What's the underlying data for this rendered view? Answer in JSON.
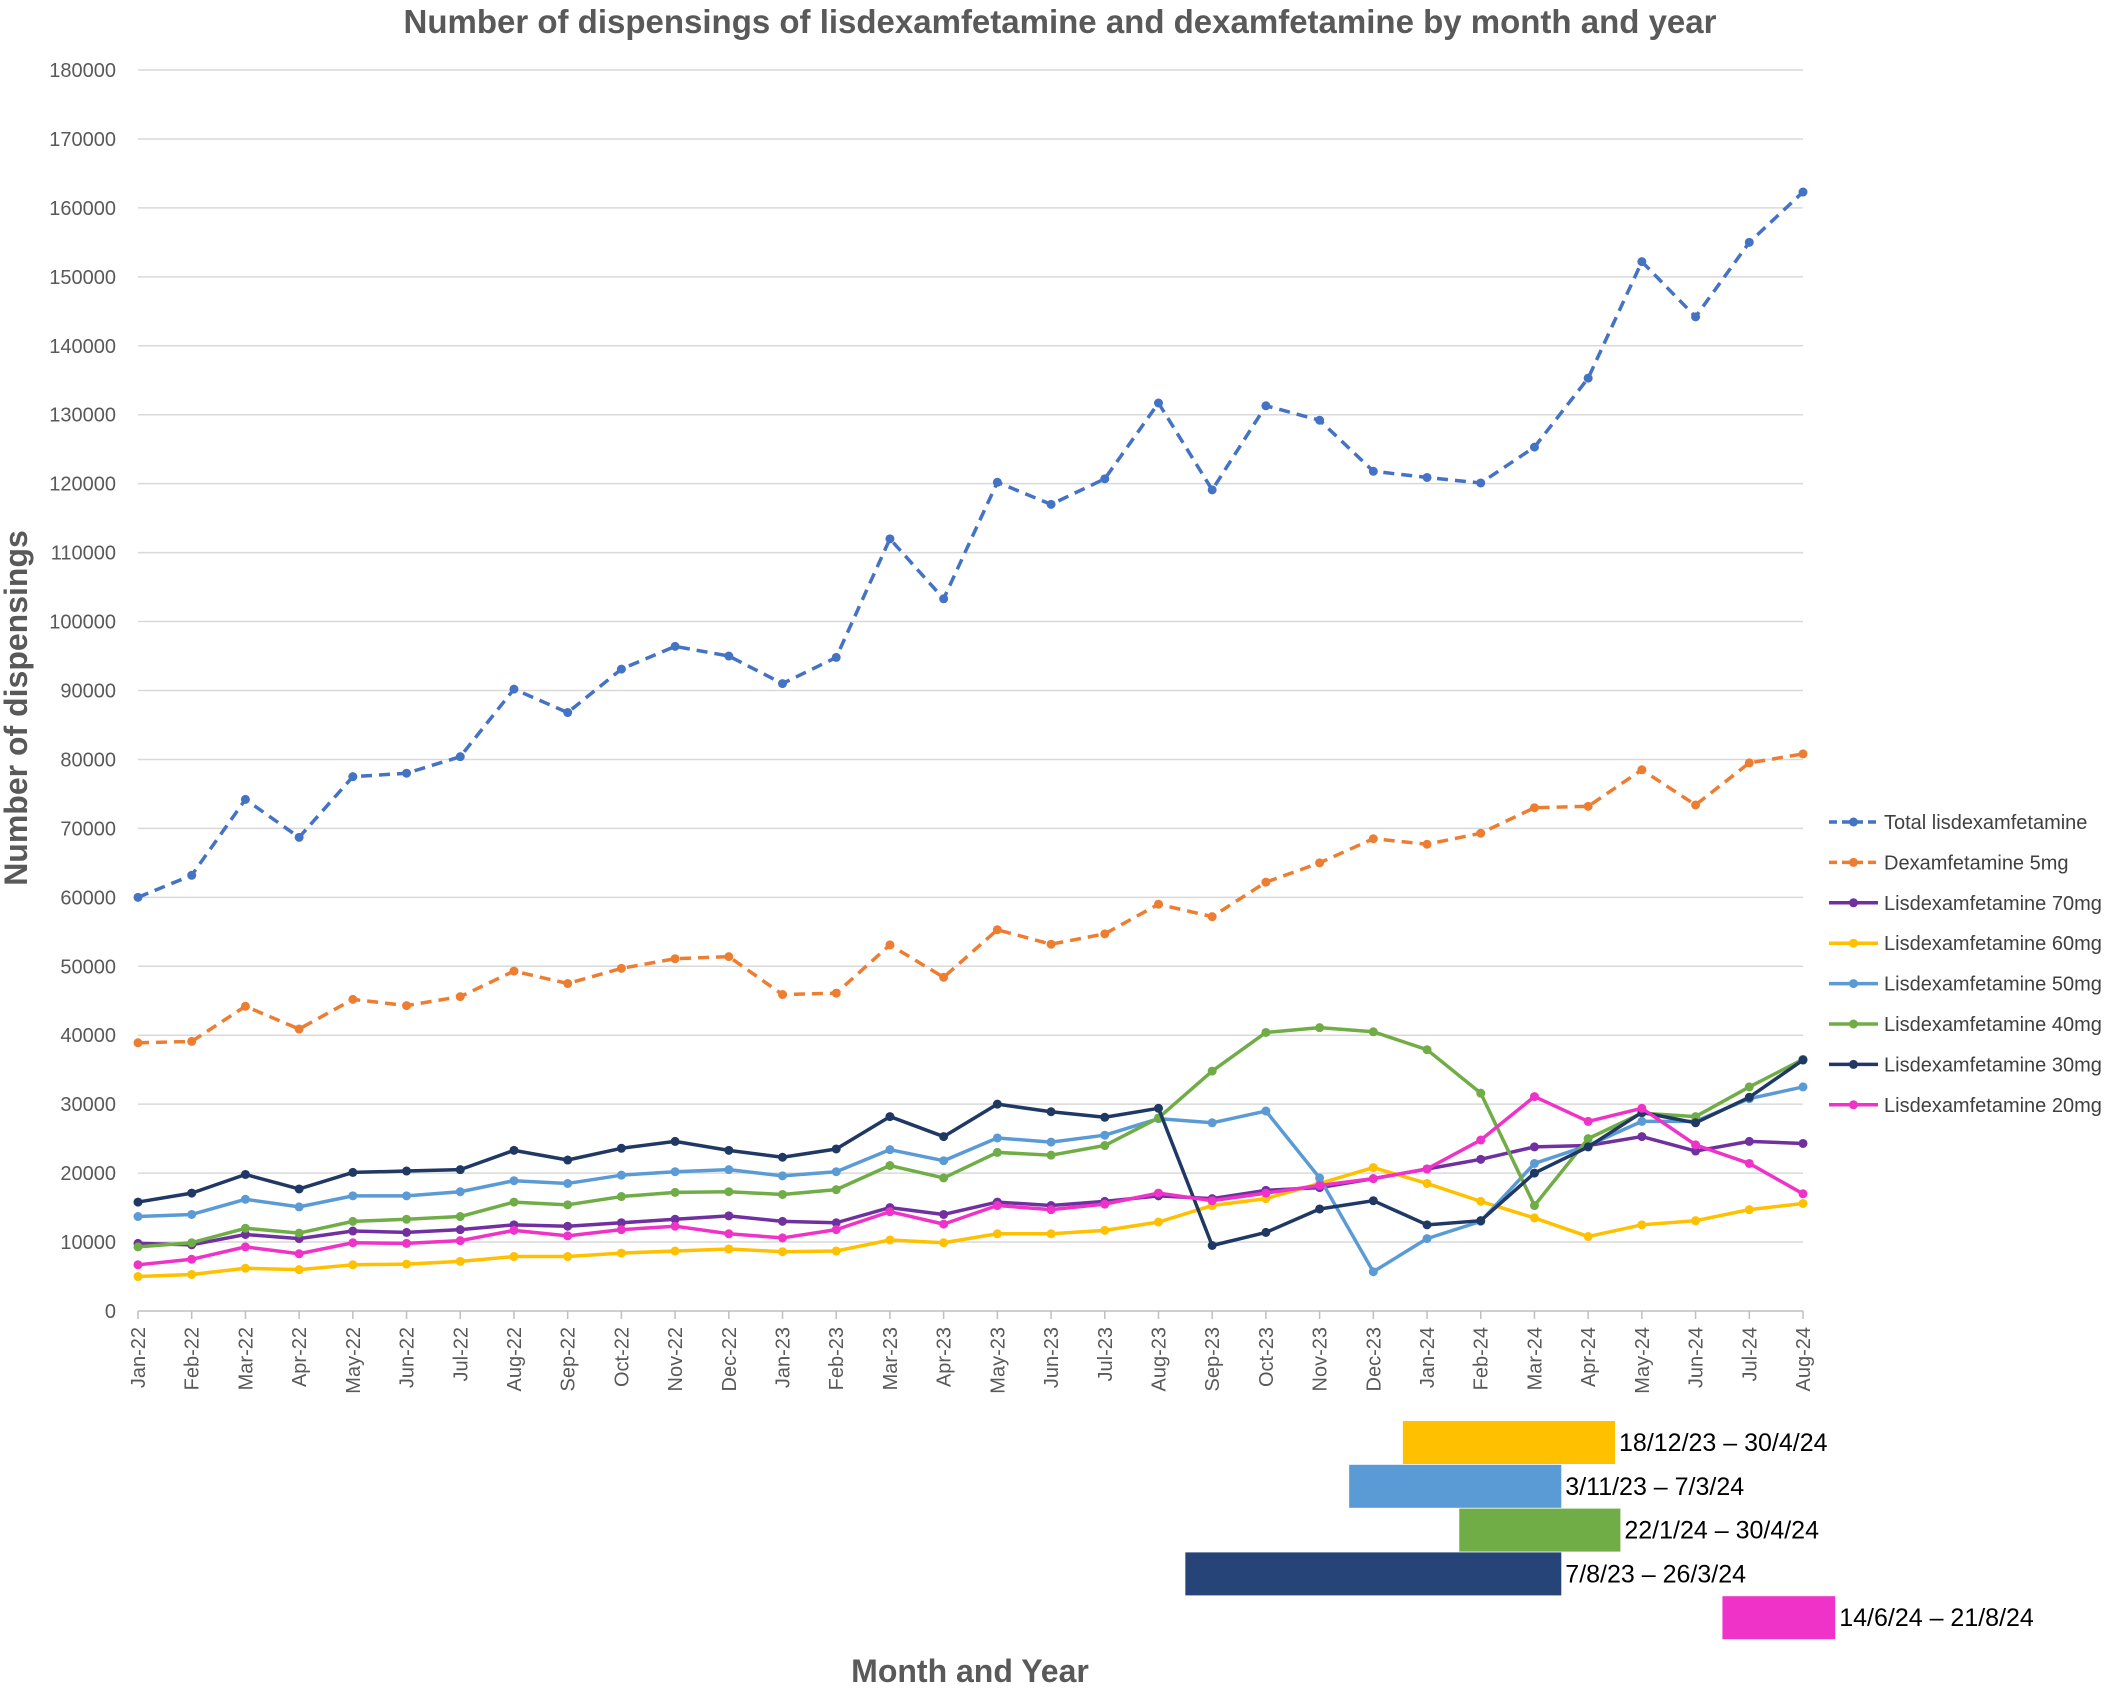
{
  "chart_data": {
    "type": "line",
    "title": "Number of dispensings of lisdexamfetamine and dexamfetamine by month and year",
    "xlabel": "Month and Year",
    "ylabel": "Number of dispensings",
    "ylim": [
      0,
      180000
    ],
    "y_ticks": [
      0,
      10000,
      20000,
      30000,
      40000,
      50000,
      60000,
      70000,
      80000,
      90000,
      100000,
      110000,
      120000,
      130000,
      140000,
      150000,
      160000,
      170000,
      180000
    ],
    "grid": true,
    "legend_position": "right",
    "categories": [
      "Jan-22",
      "Feb-22",
      "Mar-22",
      "Apr-22",
      "May-22",
      "Jun-22",
      "Jul-22",
      "Aug-22",
      "Sep-22",
      "Oct-22",
      "Nov-22",
      "Dec-22",
      "Jan-23",
      "Feb-23",
      "Mar-23",
      "Apr-23",
      "May-23",
      "Jun-23",
      "Jul-23",
      "Aug-23",
      "Sep-23",
      "Oct-23",
      "Nov-23",
      "Dec-23",
      "Jan-24",
      "Feb-24",
      "Mar-24",
      "Apr-24",
      "May-24",
      "Jun-24",
      "Jul-24",
      "Aug-24"
    ],
    "series": [
      {
        "name": "Total lisdexamfetamine",
        "color": "#4472C4",
        "dashed": true,
        "values": [
          60000,
          63200,
          74200,
          68700,
          77500,
          78000,
          80400,
          90200,
          86800,
          93100,
          96400,
          95000,
          91000,
          94800,
          112000,
          103300,
          120200,
          117000,
          120700,
          131700,
          119100,
          131300,
          129200,
          121800,
          120900,
          120100,
          125300,
          135300,
          152200,
          144200,
          155000,
          162300
        ]
      },
      {
        "name": "Dexamfetamine 5mg",
        "color": "#ED7D31",
        "dashed": true,
        "values": [
          38900,
          39100,
          44200,
          40900,
          45200,
          44300,
          45600,
          49300,
          47500,
          49700,
          51100,
          51400,
          45900,
          46100,
          53100,
          48400,
          55300,
          53200,
          54700,
          59000,
          57200,
          62200,
          65000,
          68500,
          67700,
          69300,
          73000,
          73200,
          78500,
          73400,
          79500,
          80800
        ]
      },
      {
        "name": "Lisdexamfetamine 70mg",
        "color": "#7030A0",
        "dashed": false,
        "values": [
          9800,
          9600,
          11100,
          10500,
          11600,
          11400,
          11800,
          12500,
          12300,
          12800,
          13300,
          13800,
          13000,
          12800,
          15000,
          14000,
          15800,
          15300,
          15900,
          16700,
          16300,
          17500,
          17900,
          19200,
          20600,
          22000,
          23800,
          24000,
          25300,
          23200,
          24600,
          24300
        ]
      },
      {
        "name": "Lisdexamfetamine 60mg",
        "color": "#FFC000",
        "dashed": false,
        "values": [
          5000,
          5300,
          6200,
          6000,
          6700,
          6800,
          7200,
          7900,
          7900,
          8400,
          8700,
          9000,
          8600,
          8700,
          10300,
          9900,
          11200,
          11200,
          11700,
          12900,
          15300,
          16300,
          18500,
          20800,
          18500,
          15900,
          13500,
          10800,
          12500,
          13100,
          14700,
          15600
        ]
      },
      {
        "name": "Lisdexamfetamine 50mg",
        "color": "#5B9BD5",
        "dashed": false,
        "values": [
          13700,
          14000,
          16200,
          15100,
          16700,
          16700,
          17300,
          18900,
          18500,
          19700,
          20200,
          20500,
          19600,
          20200,
          23400,
          21800,
          25100,
          24500,
          25500,
          27900,
          27300,
          29000,
          19300,
          5700,
          10500,
          13000,
          21400,
          24000,
          27500,
          27500,
          30800,
          32500
        ]
      },
      {
        "name": "Lisdexamfetamine 40mg",
        "color": "#70AD47",
        "dashed": false,
        "values": [
          9300,
          9900,
          12000,
          11300,
          13000,
          13300,
          13700,
          15800,
          15400,
          16600,
          17200,
          17300,
          16900,
          17600,
          21100,
          19300,
          23000,
          22600,
          24000,
          28000,
          34800,
          40400,
          41100,
          40500,
          37900,
          31600,
          15300,
          25000,
          28700,
          28200,
          32500,
          36500
        ]
      },
      {
        "name": "Lisdexamfetamine 30mg",
        "color": "#203864",
        "dashed": false,
        "values": [
          15800,
          17100,
          19800,
          17700,
          20100,
          20300,
          20500,
          23300,
          21900,
          23600,
          24600,
          23300,
          22300,
          23500,
          28200,
          25300,
          30000,
          28900,
          28100,
          29400,
          9500,
          11400,
          14800,
          16000,
          12500,
          13100,
          20000,
          23800,
          28800,
          27300,
          31000,
          36400
        ]
      },
      {
        "name": "Lisdexamfetamine 20mg",
        "color": "#F033C8",
        "dashed": false,
        "values": [
          6700,
          7500,
          9300,
          8300,
          9900,
          9800,
          10200,
          11700,
          10900,
          11800,
          12300,
          11200,
          10600,
          11800,
          14400,
          12600,
          15300,
          14700,
          15500,
          17100,
          16000,
          17100,
          18200,
          19200,
          20600,
          24800,
          31100,
          27500,
          29400,
          24100,
          21400,
          17000
        ]
      }
    ],
    "range_bars": [
      {
        "label": "18/12/23 – 30/4/24",
        "color": "#FFC000",
        "start_month": 23.55,
        "end_month": 27.5
      },
      {
        "label": "3/11/23 – 7/3/24",
        "color": "#5B9BD5",
        "start_month": 22.55,
        "end_month": 26.5
      },
      {
        "label": "22/1/24 – 30/4/24",
        "color": "#70AD47",
        "start_month": 24.6,
        "end_month": 27.6
      },
      {
        "label": "7/8/23 – 26/3/24",
        "color": "#264478",
        "start_month": 19.5,
        "end_month": 26.5
      },
      {
        "label": "14/6/24 – 21/8/24",
        "color": "#F033C8",
        "start_month": 29.5,
        "end_month": 31.6
      }
    ]
  }
}
